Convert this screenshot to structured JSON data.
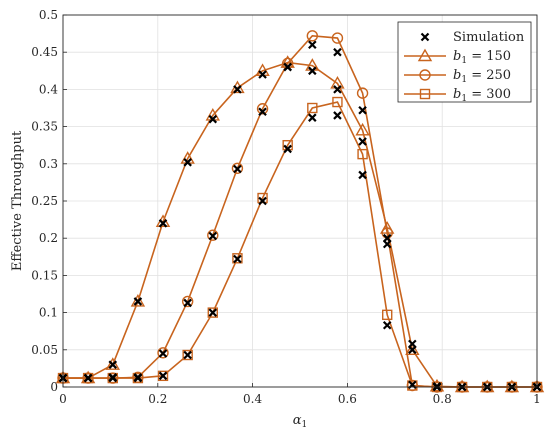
{
  "chart_data": {
    "type": "line",
    "xlabel": "α₁",
    "ylabel": "Effective Throughput",
    "xlim": [
      0,
      1
    ],
    "ylim": [
      0,
      0.5
    ],
    "xticks": [
      0,
      0.2,
      0.4,
      0.6,
      0.8,
      1
    ],
    "xtick_labels": [
      "0",
      "0.2",
      "0.4",
      "0.6",
      "0.8",
      "1"
    ],
    "yticks": [
      0,
      0.05,
      0.1,
      0.15,
      0.2,
      0.25,
      0.3,
      0.35,
      0.4,
      0.45,
      0.5
    ],
    "ytick_labels": [
      "0",
      "0.05",
      "0.1",
      "0.15",
      "0.2",
      "0.25",
      "0.3",
      "0.35",
      "0.4",
      "0.45",
      "0.5"
    ],
    "grid": true,
    "legend_position": "top-right",
    "x": [
      0,
      0.053,
      0.105,
      0.158,
      0.211,
      0.263,
      0.316,
      0.368,
      0.421,
      0.474,
      0.526,
      0.579,
      0.632,
      0.684,
      0.737,
      0.789,
      0.842,
      0.895,
      0.947,
      1.0
    ],
    "series": [
      {
        "name": "Simulation",
        "legend_label": "Simulation",
        "marker": "x",
        "color": "#000000",
        "points": [
          {
            "label": "b1=150",
            "x": [
              0,
              0.053,
              0.105,
              0.158,
              0.211,
              0.263,
              0.316,
              0.368,
              0.421,
              0.474,
              0.526,
              0.579,
              0.632,
              0.684,
              0.737,
              0.789,
              0.842,
              0.895,
              0.947,
              1.0
            ],
            "y": [
              0.012,
              0.012,
              0.03,
              0.115,
              0.22,
              0.302,
              0.36,
              0.4,
              0.42,
              0.43,
              0.425,
              0.4,
              0.33,
              0.2,
              0.05,
              0.001,
              0.0,
              0.0,
              0.0,
              0.0
            ]
          },
          {
            "label": "b1=250",
            "x": [
              0,
              0.053,
              0.105,
              0.158,
              0.211,
              0.263,
              0.316,
              0.368,
              0.421,
              0.474,
              0.526,
              0.579,
              0.632,
              0.684,
              0.737,
              0.789,
              0.842,
              0.895,
              0.947,
              1.0
            ],
            "y": [
              0.012,
              0.012,
              0.013,
              0.013,
              0.045,
              0.113,
              0.203,
              0.293,
              0.37,
              0.43,
              0.46,
              0.45,
              0.372,
              0.192,
              0.003,
              0.0,
              0.0,
              0.0,
              0.0,
              0.0
            ]
          },
          {
            "label": "b1=300",
            "x": [
              0,
              0.053,
              0.105,
              0.158,
              0.211,
              0.263,
              0.316,
              0.368,
              0.421,
              0.474,
              0.526,
              0.579,
              0.632,
              0.684,
              0.737,
              0.789,
              0.842,
              0.895,
              0.947,
              1.0
            ],
            "y": [
              0.012,
              0.012,
              0.012,
              0.012,
              0.015,
              0.043,
              0.1,
              0.172,
              0.25,
              0.32,
              0.362,
              0.365,
              0.285,
              0.083,
              0.058,
              0.0,
              0.0,
              0.0,
              0.0,
              0.0
            ]
          }
        ]
      },
      {
        "name": "b1 = 150",
        "legend_label": "b",
        "legend_sub": "1",
        "legend_rest": " = 150",
        "marker": "triangle",
        "color": "#c8641e",
        "values": [
          0.012,
          0.012,
          0.03,
          0.115,
          0.222,
          0.307,
          0.365,
          0.402,
          0.425,
          0.436,
          0.432,
          0.408,
          0.345,
          0.213,
          0.05,
          0.001,
          0.0,
          0.0,
          0.0,
          0.0
        ]
      },
      {
        "name": "b1 = 250",
        "legend_label": "b",
        "legend_sub": "1",
        "legend_rest": " = 250",
        "marker": "circle",
        "color": "#c8641e",
        "values": [
          0.012,
          0.012,
          0.012,
          0.013,
          0.046,
          0.115,
          0.204,
          0.294,
          0.374,
          0.435,
          0.472,
          0.469,
          0.395,
          0.207,
          0.002,
          0.0,
          0.0,
          0.0,
          0.0,
          0.0
        ]
      },
      {
        "name": "b1 = 300",
        "legend_label": "b",
        "legend_sub": "1",
        "legend_rest": " = 300",
        "marker": "square",
        "color": "#c8641e",
        "values": [
          0.012,
          0.012,
          0.012,
          0.012,
          0.015,
          0.043,
          0.1,
          0.173,
          0.254,
          0.325,
          0.375,
          0.383,
          0.313,
          0.097,
          0.002,
          0.0,
          0.0,
          0.0,
          0.0,
          0.0
        ]
      }
    ]
  }
}
